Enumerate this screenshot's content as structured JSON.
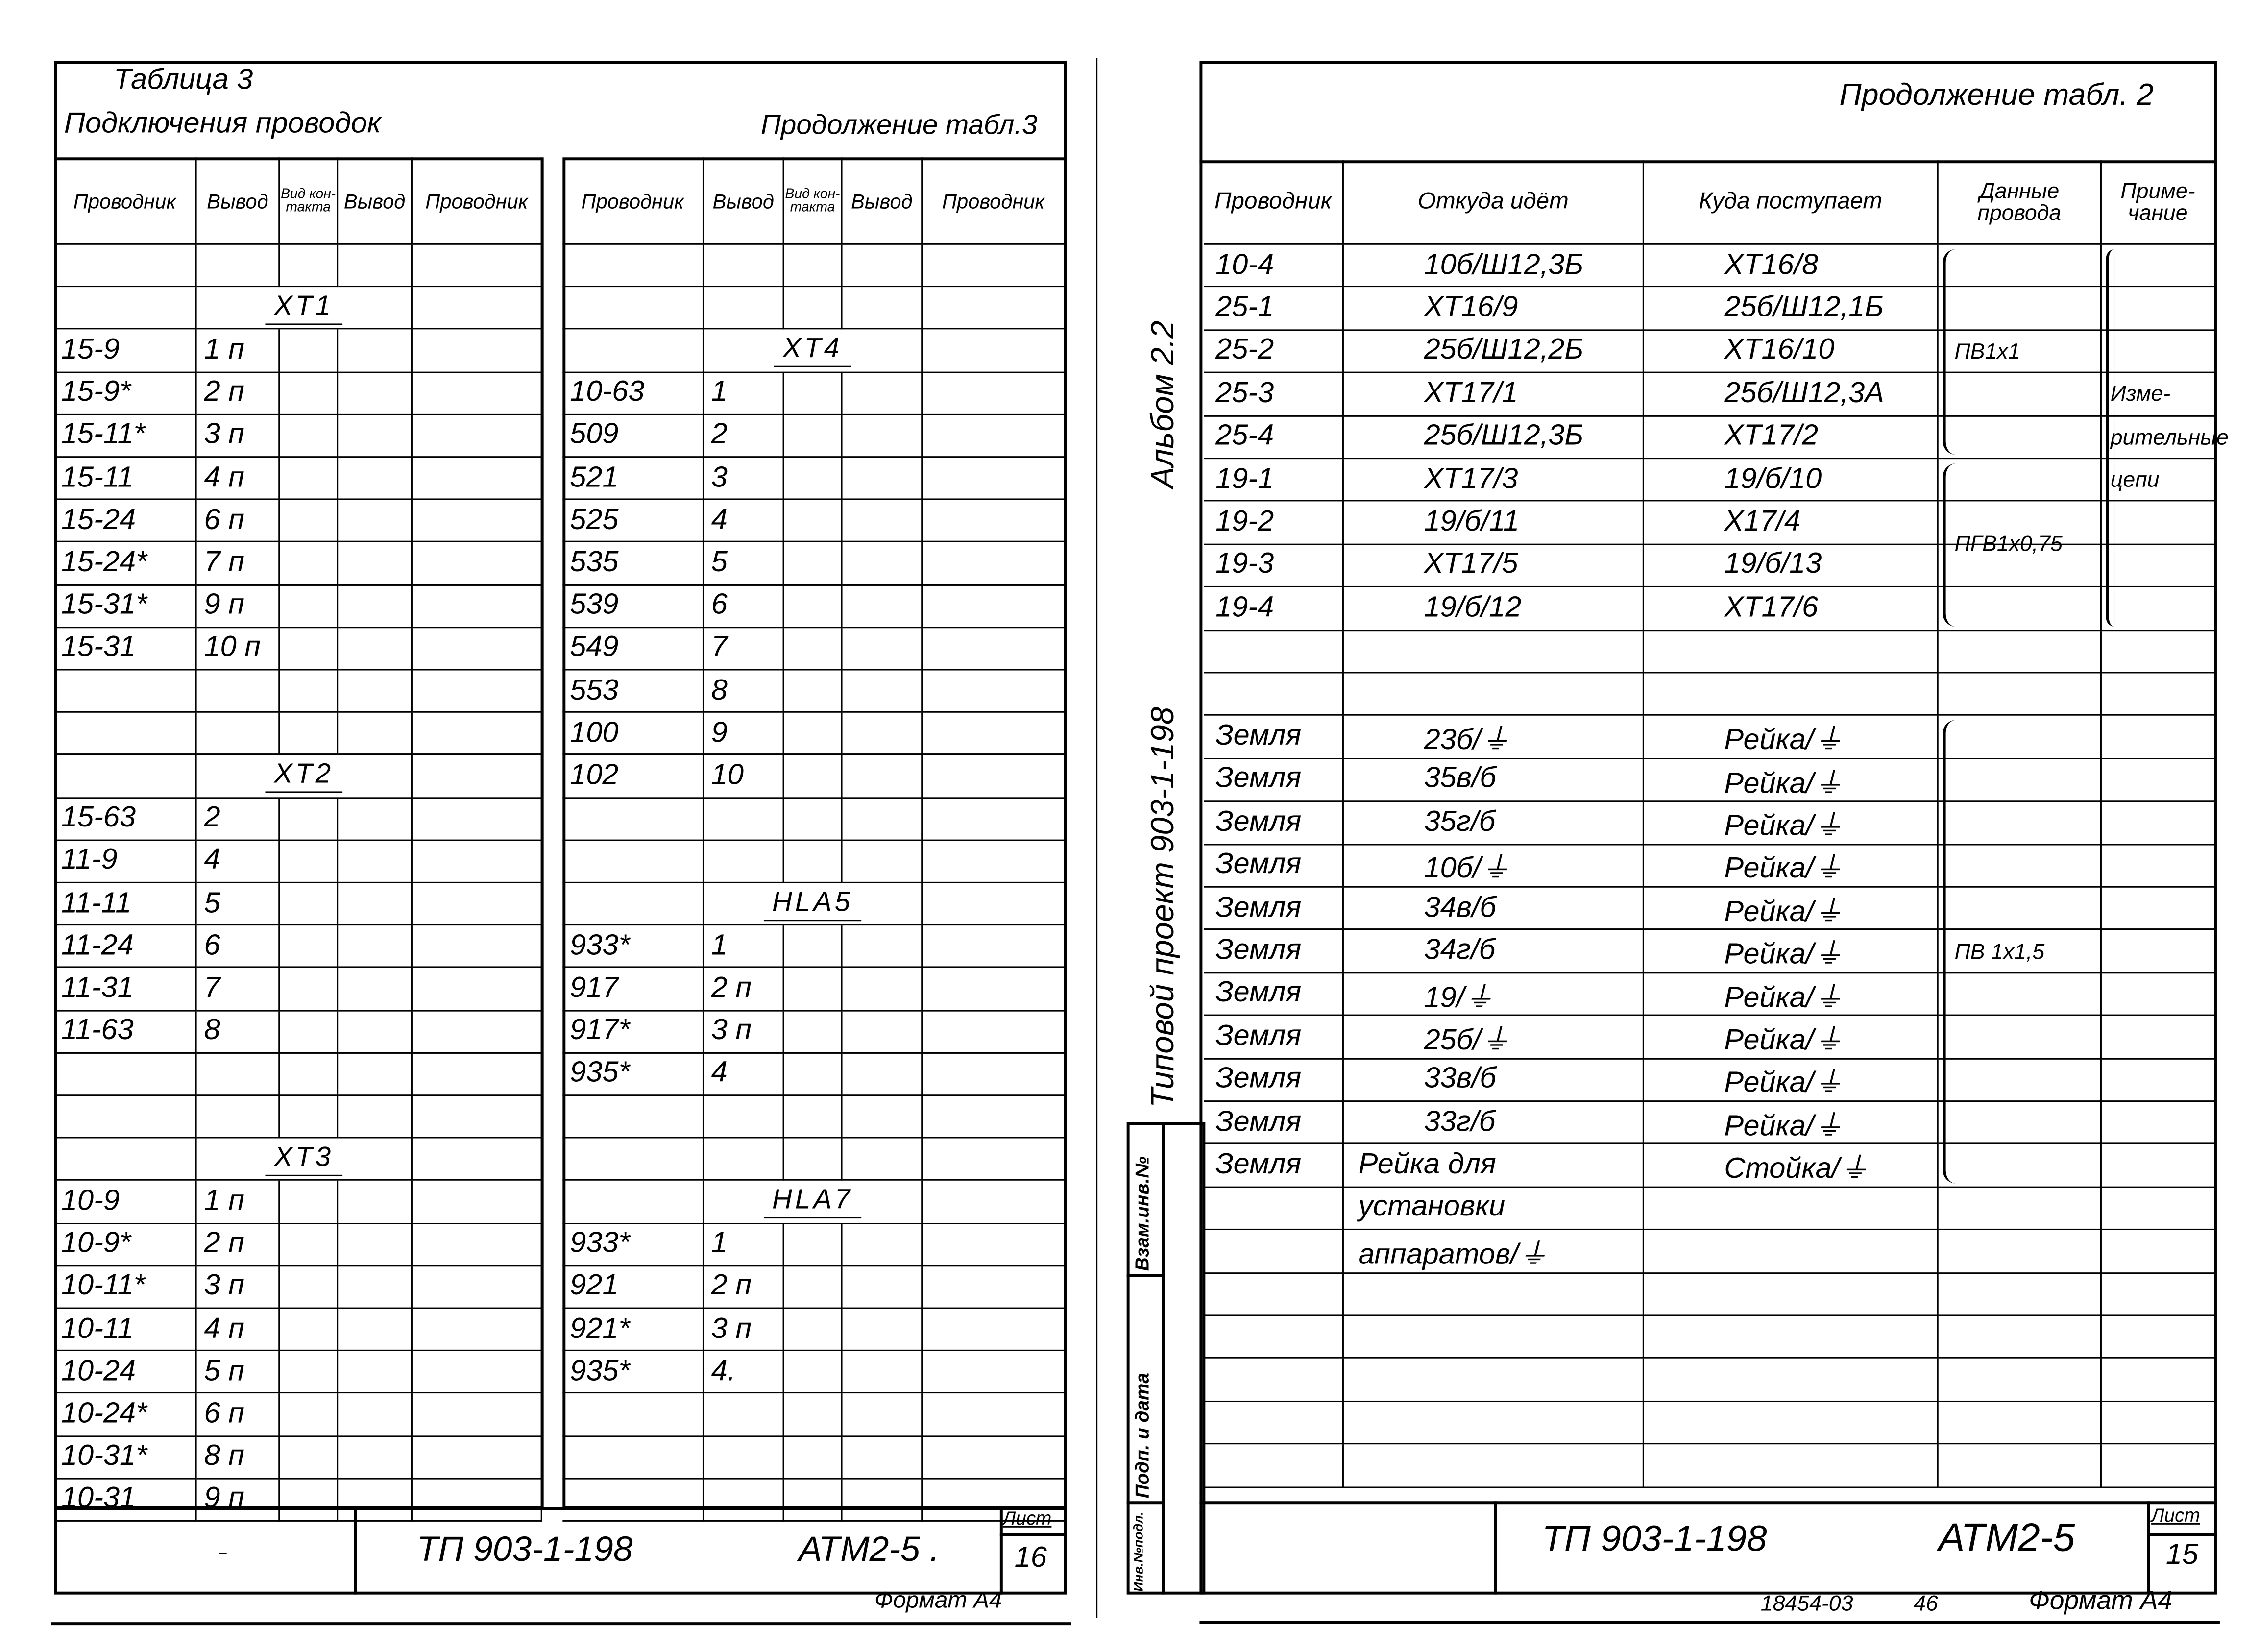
{
  "left_page": {
    "table_label": "Таблица 3",
    "title": "Подключения проводок",
    "continuation": "Продолжение табл.3",
    "headers": [
      "Проводник",
      "Вывод",
      "Вид кон-такта",
      "Вывод",
      "Проводник"
    ],
    "table_a": {
      "rows": [
        {
          "type": "blank"
        },
        {
          "type": "label",
          "label": "XT1"
        },
        {
          "type": "data",
          "wire": "15-9",
          "pin": "1 п"
        },
        {
          "type": "data",
          "wire": "15-9*",
          "pin": "2 п"
        },
        {
          "type": "data",
          "wire": "15-11*",
          "pin": "3 п"
        },
        {
          "type": "data",
          "wire": "15-11",
          "pin": "4 п"
        },
        {
          "type": "data",
          "wire": "15-24",
          "pin": "6 п"
        },
        {
          "type": "data",
          "wire": "15-24*",
          "pin": "7 п"
        },
        {
          "type": "data",
          "wire": "15-31*",
          "pin": "9 п"
        },
        {
          "type": "data",
          "wire": "15-31",
          "pin": "10 п"
        },
        {
          "type": "blank"
        },
        {
          "type": "blank"
        },
        {
          "type": "label",
          "label": "XT2"
        },
        {
          "type": "data",
          "wire": "15-63",
          "pin": "2"
        },
        {
          "type": "data",
          "wire": "11-9",
          "pin": "4"
        },
        {
          "type": "data",
          "wire": "11-11",
          "pin": "5"
        },
        {
          "type": "data",
          "wire": "11-24",
          "pin": "6"
        },
        {
          "type": "data",
          "wire": "11-31",
          "pin": "7"
        },
        {
          "type": "data",
          "wire": "11-63",
          "pin": "8"
        },
        {
          "type": "blank"
        },
        {
          "type": "blank"
        },
        {
          "type": "label",
          "label": "XT3"
        },
        {
          "type": "data",
          "wire": "10-9",
          "pin": "1 п"
        },
        {
          "type": "data",
          "wire": "10-9*",
          "pin": "2 п"
        },
        {
          "type": "data",
          "wire": "10-11*",
          "pin": "3 п"
        },
        {
          "type": "data",
          "wire": "10-11",
          "pin": "4 п"
        },
        {
          "type": "data",
          "wire": "10-24",
          "pin": "5 п"
        },
        {
          "type": "data",
          "wire": "10-24*",
          "pin": "6 п"
        },
        {
          "type": "data",
          "wire": "10-31*",
          "pin": "8 п"
        },
        {
          "type": "data",
          "wire": "10-31",
          "pin": "9 п"
        }
      ]
    },
    "table_b": {
      "rows": [
        {
          "type": "blank"
        },
        {
          "type": "blank"
        },
        {
          "type": "label",
          "label": "XT4"
        },
        {
          "type": "data",
          "wire": "10-63",
          "pin": "1"
        },
        {
          "type": "data",
          "wire": "509",
          "pin": "2"
        },
        {
          "type": "data",
          "wire": "521",
          "pin": "3"
        },
        {
          "type": "data",
          "wire": "525",
          "pin": "4"
        },
        {
          "type": "data",
          "wire": "535",
          "pin": "5"
        },
        {
          "type": "data",
          "wire": "539",
          "pin": "6"
        },
        {
          "type": "data",
          "wire": "549",
          "pin": "7"
        },
        {
          "type": "data",
          "wire": "553",
          "pin": "8"
        },
        {
          "type": "data",
          "wire": "100",
          "pin": "9"
        },
        {
          "type": "data",
          "wire": "102",
          "pin": "10"
        },
        {
          "type": "blank"
        },
        {
          "type": "blank"
        },
        {
          "type": "label",
          "label": "HLA5"
        },
        {
          "type": "data",
          "wire": "933*",
          "pin": "1"
        },
        {
          "type": "data",
          "wire": "917",
          "pin": "2 п"
        },
        {
          "type": "data",
          "wire": "917*",
          "pin": "3 п"
        },
        {
          "type": "data",
          "wire": "935*",
          "pin": "4"
        },
        {
          "type": "blank"
        },
        {
          "type": "blank"
        },
        {
          "type": "label",
          "label": "HLA7"
        },
        {
          "type": "data",
          "wire": "933*",
          "pin": "1"
        },
        {
          "type": "data",
          "wire": "921",
          "pin": "2 п"
        },
        {
          "type": "data",
          "wire": "921*",
          "pin": "3 п"
        },
        {
          "type": "data",
          "wire": "935*",
          "pin": "4."
        },
        {
          "type": "blank"
        },
        {
          "type": "blank"
        },
        {
          "type": "blank"
        }
      ]
    },
    "title_block": {
      "doc_number": "ТП 903-1-198",
      "code": "АТМ2-5 .",
      "sheet_label": "Лист",
      "sheet": "16",
      "dash": "–"
    },
    "format": "Формат А4"
  },
  "right_page": {
    "continuation": "Продолжение табл. 2",
    "headers": [
      "Проводник",
      "Откуда идёт",
      "Куда поступает",
      "Данные провода",
      "Приме-чание"
    ],
    "rows": [
      {
        "wire": "10-4",
        "from": "10б/Ш12,3Б",
        "to": "XT16/8"
      },
      {
        "wire": "25-1",
        "from": "XT16/9",
        "to": "25б/Ш12,1Б"
      },
      {
        "wire": "25-2",
        "from": "25б/Ш12,2Б",
        "to": "XT16/10"
      },
      {
        "wire": "25-3",
        "from": "XT17/1",
        "to": "25б/Ш12,3А"
      },
      {
        "wire": "25-4",
        "from": "25б/Ш12,3Б",
        "to": "XT17/2"
      },
      {
        "wire": "19-1",
        "from": "XT17/3",
        "to": "19/б/10"
      },
      {
        "wire": "19-2",
        "from": "19/б/11",
        "to": "X17/4"
      },
      {
        "wire": "19-3",
        "from": "XT17/5",
        "to": "19/б/13"
      },
      {
        "wire": "19-4",
        "from": "19/б/12",
        "to": "XT17/6"
      },
      {
        "wire": "",
        "from": "",
        "to": ""
      },
      {
        "wire": "",
        "from": "",
        "to": ""
      },
      {
        "wire": "Земля",
        "from": "23б/⏚",
        "to": "Рейка/⏚"
      },
      {
        "wire": "Земля",
        "from": "35в/б",
        "to": "Рейка/⏚"
      },
      {
        "wire": "Земля",
        "from": "35г/б",
        "to": "Рейка/⏚"
      },
      {
        "wire": "Земля",
        "from": "10б/⏚",
        "to": "Рейка/⏚"
      },
      {
        "wire": "Земля",
        "from": "34в/б",
        "to": "Рейка/⏚"
      },
      {
        "wire": "Земля",
        "from": "34г/б",
        "to": "Рейка/⏚"
      },
      {
        "wire": "Земля",
        "from": "19/⏚",
        "to": "Рейка/⏚"
      },
      {
        "wire": "Земля",
        "from": "25б/⏚",
        "to": "Рейка/⏚"
      },
      {
        "wire": "Земля",
        "from": "33в/б",
        "to": "Рейка/⏚"
      },
      {
        "wire": "Земля",
        "from": "33г/б",
        "to": "Рейка/⏚"
      },
      {
        "wire": "Земля",
        "from": "Рейка  для",
        "to": "Стойка/⏚"
      },
      {
        "wire": "",
        "from": "установки",
        "to": ""
      },
      {
        "wire": "",
        "from": "аппаратов/⏚",
        "to": ""
      },
      {
        "wire": "",
        "from": "",
        "to": ""
      },
      {
        "wire": "",
        "from": "",
        "to": ""
      },
      {
        "wire": "",
        "from": "",
        "to": ""
      },
      {
        "wire": "",
        "from": "",
        "to": ""
      },
      {
        "wire": "",
        "from": "",
        "to": ""
      }
    ],
    "wire_data_groups": [
      {
        "label": "ПВ1х1",
        "first_row": 0,
        "last_row": 4
      },
      {
        "label": "ПГВ1х0,75",
        "first_row": 5,
        "last_row": 8
      },
      {
        "label": "ПВ 1х1,5",
        "first_row": 11,
        "last_row": 21
      }
    ],
    "note": {
      "lines": [
        "Изме-",
        "рительные",
        "цепи"
      ],
      "first_row": 0,
      "last_row": 8
    },
    "side_text": {
      "project": "Типовой  проект   903-1-198",
      "album": "Альбом  2.2"
    },
    "stamp": {
      "replace_inv": "Взам.инв.№",
      "sign_date": "Подп. и дата",
      "orig_inv": "Инв.№подл."
    },
    "title_block": {
      "doc_number": "ТП 903-1-198",
      "code": "АТМ2-5",
      "sheet_label": "Лист",
      "sheet": "15"
    },
    "footer": {
      "order": "18454-03",
      "page": "46",
      "format": "Формат А4"
    }
  }
}
